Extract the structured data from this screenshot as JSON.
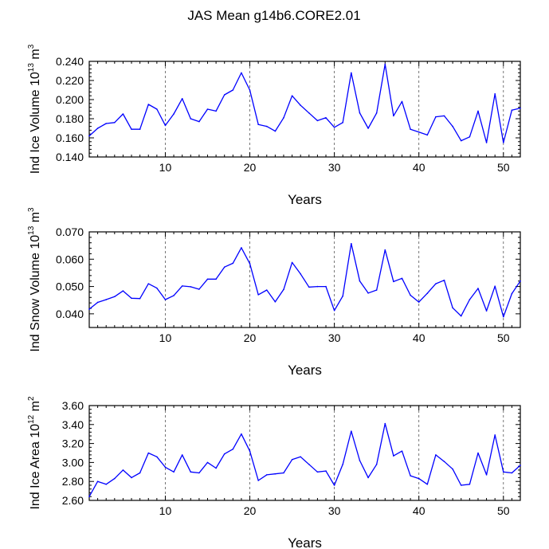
{
  "chart_data": {
    "title": "JAS Mean g14b6.CORE2.01",
    "panels": [
      {
        "type": "line",
        "ylabel_main": "Ind Ice Volume 10",
        "ylabel_exp": "13",
        "ylabel_unit": " m",
        "ylabel_unit_exp": "3",
        "xlabel": "Years",
        "xlim": [
          1,
          52
        ],
        "ylim": [
          0.14,
          0.24
        ],
        "xticks": [
          10,
          20,
          30,
          40,
          50
        ],
        "xtick_labels": [
          "10",
          "20",
          "30",
          "40",
          "50"
        ],
        "yticks": [
          0.14,
          0.16,
          0.18,
          0.2,
          0.22,
          0.24
        ],
        "ytick_labels": [
          "0.140",
          "0.160",
          "0.180",
          "0.200",
          "0.220",
          "0.240"
        ],
        "series": [
          {
            "name": "Ind Ice Volume",
            "color": "#0000ff",
            "x": [
              1,
              2,
              3,
              4,
              5,
              6,
              7,
              8,
              9,
              10,
              11,
              12,
              13,
              14,
              15,
              16,
              17,
              18,
              19,
              20,
              21,
              22,
              23,
              24,
              25,
              26,
              27,
              28,
              29,
              30,
              31,
              32,
              33,
              34,
              35,
              36,
              37,
              38,
              39,
              40,
              41,
              42,
              43,
              44,
              45,
              46,
              47,
              48,
              49,
              50,
              51,
              52
            ],
            "values": [
              0.162,
              0.17,
              0.175,
              0.176,
              0.185,
              0.169,
              0.169,
              0.195,
              0.19,
              0.173,
              0.185,
              0.201,
              0.18,
              0.177,
              0.19,
              0.188,
              0.205,
              0.21,
              0.228,
              0.21,
              0.174,
              0.172,
              0.167,
              0.181,
              0.204,
              0.194,
              0.186,
              0.178,
              0.181,
              0.171,
              0.176,
              0.228,
              0.186,
              0.17,
              0.186,
              0.237,
              0.183,
              0.198,
              0.169,
              0.166,
              0.163,
              0.182,
              0.183,
              0.172,
              0.157,
              0.161,
              0.188,
              0.155,
              0.206,
              0.155,
              0.189,
              0.191
            ]
          }
        ]
      },
      {
        "type": "line",
        "ylabel_main": "Ind Snow Volume 10",
        "ylabel_exp": "13",
        "ylabel_unit": " m",
        "ylabel_unit_exp": "3",
        "xlabel": "Years",
        "xlim": [
          1,
          52
        ],
        "ylim": [
          0.035,
          0.07
        ],
        "xticks": [
          10,
          20,
          30,
          40,
          50
        ],
        "xtick_labels": [
          "10",
          "20",
          "30",
          "40",
          "50"
        ],
        "yticks": [
          0.04,
          0.05,
          0.06,
          0.07
        ],
        "ytick_labels": [
          "0.040",
          "0.050",
          "0.060",
          "0.070"
        ],
        "series": [
          {
            "name": "Ind Snow Volume",
            "color": "#0000ff",
            "x": [
              1,
              2,
              3,
              4,
              5,
              6,
              7,
              8,
              9,
              10,
              11,
              12,
              13,
              14,
              15,
              16,
              17,
              18,
              19,
              20,
              21,
              22,
              23,
              24,
              25,
              26,
              27,
              28,
              29,
              30,
              31,
              32,
              33,
              34,
              35,
              36,
              37,
              38,
              39,
              40,
              41,
              42,
              43,
              44,
              45,
              46,
              47,
              48,
              49,
              50,
              51,
              52
            ],
            "values": [
              0.0417,
              0.0442,
              0.0452,
              0.0463,
              0.0484,
              0.0457,
              0.0456,
              0.051,
              0.0494,
              0.0452,
              0.0467,
              0.0502,
              0.0499,
              0.049,
              0.0527,
              0.0527,
              0.0571,
              0.0585,
              0.0642,
              0.0584,
              0.047,
              0.0487,
              0.0444,
              0.0489,
              0.0588,
              0.0546,
              0.0498,
              0.05,
              0.05,
              0.0412,
              0.0465,
              0.0657,
              0.052,
              0.0476,
              0.0487,
              0.0634,
              0.0518,
              0.053,
              0.0468,
              0.0443,
              0.0475,
              0.051,
              0.0523,
              0.0422,
              0.0392,
              0.0452,
              0.0493,
              0.0411,
              0.0501,
              0.0389,
              0.0474,
              0.052
            ]
          }
        ]
      },
      {
        "type": "line",
        "ylabel_main": "Ind Ice Area 10",
        "ylabel_exp": "12",
        "ylabel_unit": " m",
        "ylabel_unit_exp": "2",
        "xlabel": "Years",
        "xlim": [
          1,
          52
        ],
        "ylim": [
          2.6,
          3.6
        ],
        "xticks": [
          10,
          20,
          30,
          40,
          50
        ],
        "xtick_labels": [
          "10",
          "20",
          "30",
          "40",
          "50"
        ],
        "yticks": [
          2.6,
          2.8,
          3.0,
          3.2,
          3.4,
          3.6
        ],
        "ytick_labels": [
          "2.60",
          "2.80",
          "3.00",
          "3.20",
          "3.40",
          "3.60"
        ],
        "series": [
          {
            "name": "Ind Ice Area",
            "color": "#0000ff",
            "x": [
              1,
              2,
              3,
              4,
              5,
              6,
              7,
              8,
              9,
              10,
              11,
              12,
              13,
              14,
              15,
              16,
              17,
              18,
              19,
              20,
              21,
              22,
              23,
              24,
              25,
              26,
              27,
              28,
              29,
              30,
              31,
              32,
              33,
              34,
              35,
              36,
              37,
              38,
              39,
              40,
              41,
              42,
              43,
              44,
              45,
              46,
              47,
              48,
              49,
              50,
              51,
              52
            ],
            "values": [
              2.64,
              2.8,
              2.77,
              2.83,
              2.92,
              2.84,
              2.89,
              3.1,
              3.06,
              2.95,
              2.9,
              3.08,
              2.9,
              2.89,
              3.0,
              2.94,
              3.09,
              3.14,
              3.3,
              3.12,
              2.81,
              2.87,
              2.88,
              2.89,
              3.03,
              3.06,
              2.98,
              2.9,
              2.91,
              2.76,
              2.98,
              3.33,
              3.02,
              2.84,
              2.98,
              3.41,
              3.07,
              3.12,
              2.86,
              2.83,
              2.77,
              3.08,
              3.01,
              2.93,
              2.76,
              2.77,
              3.1,
              2.87,
              3.29,
              2.9,
              2.89,
              2.97
            ]
          }
        ]
      }
    ]
  }
}
